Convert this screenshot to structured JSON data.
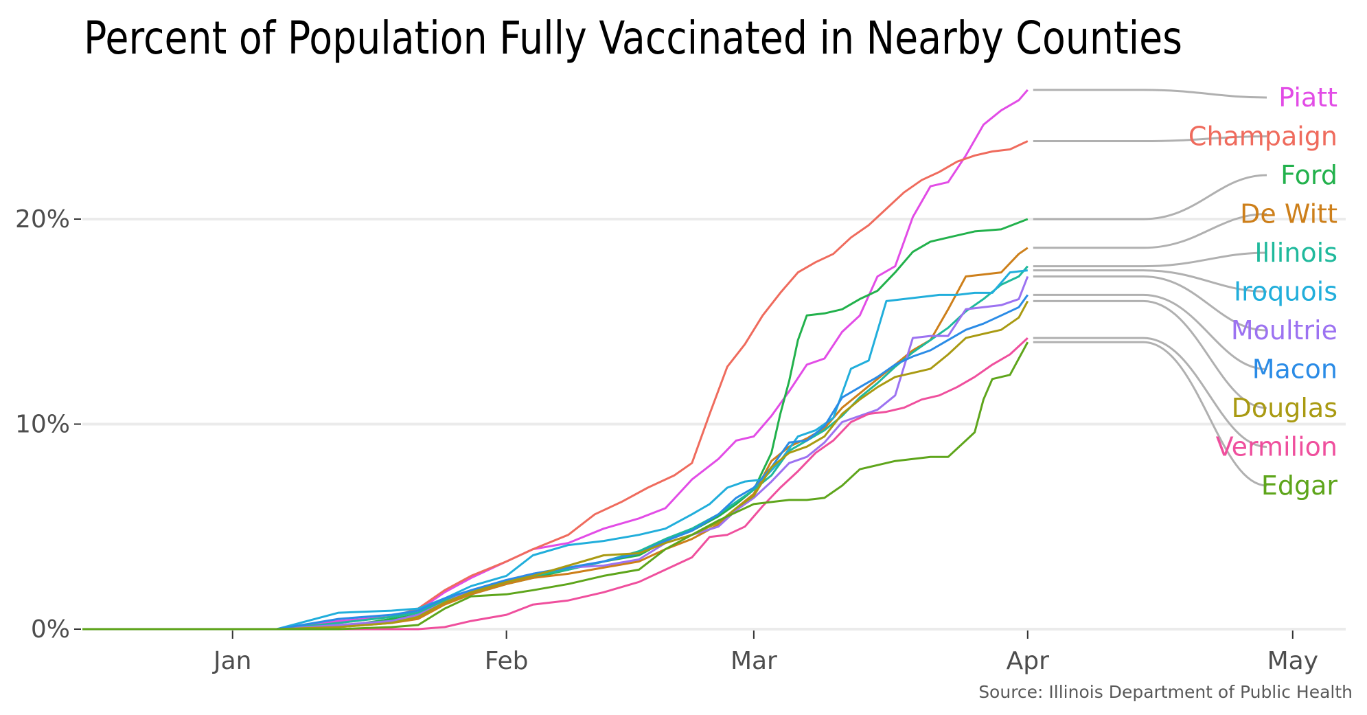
{
  "chart_data": {
    "type": "line",
    "title": "Percent of Population Fully Vaccinated in Nearby Counties",
    "source": "Source: Illinois Department of Public Health",
    "xlabel": "",
    "ylabel": "",
    "x_ticks": [
      {
        "label": "Jan",
        "day": 0
      },
      {
        "label": "Feb",
        "day": 31
      },
      {
        "label": "Mar",
        "day": 59
      },
      {
        "label": "Apr",
        "day": 90
      },
      {
        "label": "May",
        "day": 120
      }
    ],
    "y_ticks": [
      {
        "label": "0%",
        "value": 0
      },
      {
        "label": "10%",
        "value": 10
      },
      {
        "label": "20%",
        "value": 20
      }
    ],
    "xlim": [
      -17,
      126
    ],
    "ylim": [
      0,
      27
    ],
    "grid": true,
    "legend": "direct labels at right",
    "series": [
      {
        "name": "Piatt",
        "color": "#e24ce6",
        "x": [
          -17,
          5,
          12,
          18,
          21,
          24,
          27,
          31,
          34,
          38,
          42,
          46,
          49,
          52,
          55,
          57,
          59,
          61,
          63,
          65,
          67,
          69,
          71,
          73,
          75,
          77,
          79,
          81,
          83,
          85,
          87,
          89,
          90
        ],
        "y": [
          0,
          0,
          0.4,
          0.6,
          0.9,
          1.8,
          2.5,
          3.3,
          3.9,
          4.2,
          4.9,
          5.4,
          5.9,
          7.3,
          8.3,
          9.2,
          9.4,
          10.4,
          11.6,
          12.9,
          13.2,
          14.5,
          15.3,
          17.2,
          17.7,
          20.1,
          21.6,
          21.8,
          23.1,
          24.6,
          25.3,
          25.8,
          26.3
        ]
      },
      {
        "name": "Champaign",
        "color": "#ef6b5d",
        "x": [
          -17,
          5,
          12,
          18,
          21,
          24,
          27,
          31,
          34,
          38,
          41,
          44,
          47,
          50,
          52,
          54,
          56,
          58,
          60,
          62,
          64,
          66,
          68,
          70,
          72,
          74,
          76,
          78,
          80,
          82,
          84,
          86,
          88,
          90
        ],
        "y": [
          0,
          0,
          0.3,
          0.6,
          1,
          1.9,
          2.6,
          3.3,
          3.9,
          4.6,
          5.6,
          6.2,
          6.9,
          7.5,
          8.1,
          10.5,
          12.8,
          13.9,
          15.3,
          16.4,
          17.4,
          17.9,
          18.3,
          19.1,
          19.7,
          20.5,
          21.3,
          21.9,
          22.3,
          22.8,
          23.1,
          23.3,
          23.4,
          23.8
        ]
      },
      {
        "name": "Ford",
        "color": "#22b14c",
        "x": [
          -17,
          5,
          12,
          18,
          21,
          24,
          27,
          31,
          34,
          38,
          42,
          46,
          49,
          52,
          55,
          57,
          59,
          61,
          62,
          63,
          64,
          65,
          67,
          69,
          71,
          73,
          75,
          77,
          79,
          81,
          84,
          87,
          90
        ],
        "y": [
          0,
          0,
          0.1,
          0.5,
          0.7,
          1.3,
          1.7,
          2.2,
          2.5,
          2.9,
          3.3,
          3.6,
          4.3,
          4.8,
          5.5,
          6.1,
          6.8,
          8.6,
          10.5,
          12.1,
          14.1,
          15.3,
          15.4,
          15.6,
          16.1,
          16.5,
          17.4,
          18.4,
          18.9,
          19.1,
          19.4,
          19.5,
          20
        ]
      },
      {
        "name": "De Witt",
        "color": "#cd7f1a",
        "x": [
          -17,
          5,
          12,
          18,
          21,
          24,
          27,
          31,
          34,
          38,
          42,
          46,
          49,
          52,
          55,
          57,
          59,
          61,
          63,
          65,
          67,
          69,
          71,
          73,
          75,
          77,
          79,
          81,
          83,
          85,
          87,
          89,
          90
        ],
        "y": [
          0,
          0,
          0.1,
          0.3,
          0.5,
          1.2,
          1.7,
          2.2,
          2.5,
          2.7,
          3,
          3.3,
          3.9,
          4.4,
          5.1,
          5.9,
          6.6,
          8.2,
          8.9,
          9.3,
          9.8,
          10.8,
          11.5,
          12.2,
          12.9,
          13.6,
          14.1,
          15.6,
          17.2,
          17.3,
          17.4,
          18.3,
          18.6
        ]
      },
      {
        "name": "Illinois",
        "color": "#1fb99c",
        "x": [
          -17,
          5,
          12,
          18,
          21,
          24,
          27,
          31,
          34,
          38,
          42,
          46,
          49,
          52,
          55,
          57,
          59,
          61,
          63,
          65,
          67,
          69,
          71,
          73,
          75,
          77,
          79,
          81,
          83,
          85,
          87,
          89,
          90
        ],
        "y": [
          0,
          0,
          0.3,
          0.6,
          0.8,
          1.4,
          1.8,
          2.3,
          2.6,
          2.9,
          3.3,
          3.8,
          4.4,
          4.9,
          5.6,
          6.2,
          6.8,
          7.5,
          8.7,
          9.2,
          9.7,
          10.4,
          11.3,
          12,
          12.8,
          13.5,
          14.1,
          14.7,
          15.5,
          16.1,
          16.8,
          17.2,
          17.7
        ]
      },
      {
        "name": "Iroquois",
        "color": "#21aedb",
        "x": [
          -17,
          5,
          12,
          18,
          21,
          24,
          27,
          31,
          34,
          38,
          42,
          46,
          49,
          52,
          54,
          56,
          58,
          60,
          62,
          64,
          66,
          68,
          70,
          72,
          74,
          76,
          78,
          80,
          82,
          84,
          86,
          88,
          90
        ],
        "y": [
          0,
          0,
          0.8,
          0.9,
          1,
          1.5,
          2.1,
          2.6,
          3.6,
          4.1,
          4.3,
          4.6,
          4.9,
          5.6,
          6.1,
          6.9,
          7.2,
          7.3,
          8.2,
          9.4,
          9.7,
          10.3,
          12.7,
          13.1,
          16,
          16.1,
          16.2,
          16.3,
          16.3,
          16.4,
          16.4,
          17.4,
          17.5
        ]
      },
      {
        "name": "Moultrie",
        "color": "#9c72f1",
        "x": [
          -17,
          5,
          12,
          18,
          21,
          24,
          27,
          31,
          34,
          38,
          42,
          46,
          49,
          52,
          55,
          57,
          59,
          61,
          63,
          65,
          67,
          69,
          71,
          73,
          75,
          77,
          79,
          81,
          83,
          85,
          87,
          89,
          90
        ],
        "y": [
          0,
          0,
          0.2,
          0.4,
          0.7,
          1.3,
          1.9,
          2.4,
          2.7,
          3,
          3.1,
          3.4,
          4.2,
          4.6,
          5,
          5.8,
          6.4,
          7.2,
          8.1,
          8.4,
          9.1,
          10.1,
          10.4,
          10.7,
          11.4,
          14.2,
          14.3,
          14.3,
          15.6,
          15.7,
          15.8,
          16.1,
          17.2
        ]
      },
      {
        "name": "Macon",
        "color": "#2a8be6",
        "x": [
          -17,
          5,
          12,
          18,
          21,
          24,
          27,
          31,
          34,
          38,
          42,
          46,
          49,
          52,
          55,
          57,
          59,
          61,
          63,
          65,
          67,
          69,
          71,
          73,
          75,
          77,
          79,
          81,
          83,
          85,
          87,
          89,
          90
        ],
        "y": [
          0,
          0,
          0.5,
          0.7,
          0.9,
          1.5,
          1.9,
          2.4,
          2.7,
          3,
          3.3,
          3.7,
          4.3,
          4.8,
          5.6,
          6.4,
          6.9,
          7.9,
          9.1,
          9.2,
          9.9,
          11.3,
          11.8,
          12.3,
          12.9,
          13.3,
          13.6,
          14.1,
          14.6,
          14.9,
          15.3,
          15.7,
          16.3
        ]
      },
      {
        "name": "Douglas",
        "color": "#a99a12",
        "x": [
          -17,
          5,
          12,
          18,
          21,
          24,
          27,
          31,
          34,
          38,
          42,
          46,
          49,
          52,
          55,
          57,
          59,
          61,
          63,
          65,
          67,
          69,
          71,
          73,
          75,
          77,
          79,
          81,
          83,
          85,
          87,
          89,
          90
        ],
        "y": [
          0,
          0,
          0.1,
          0.3,
          0.6,
          1.3,
          1.8,
          2.3,
          2.6,
          3.1,
          3.6,
          3.7,
          4.2,
          4.6,
          5.2,
          5.9,
          6.5,
          7.9,
          8.6,
          8.9,
          9.4,
          10.5,
          11.2,
          11.8,
          12.3,
          12.5,
          12.7,
          13.4,
          14.2,
          14.4,
          14.6,
          15.2,
          16
        ]
      },
      {
        "name": "Vermilion",
        "color": "#ef4f9d",
        "x": [
          -17,
          5,
          12,
          18,
          21,
          24,
          27,
          31,
          34,
          38,
          42,
          46,
          49,
          52,
          54,
          56,
          58,
          60,
          62,
          64,
          66,
          68,
          70,
          72,
          74,
          76,
          78,
          80,
          82,
          84,
          86,
          88,
          90
        ],
        "y": [
          0,
          0,
          0,
          0,
          0,
          0.1,
          0.4,
          0.7,
          1.2,
          1.4,
          1.8,
          2.3,
          2.9,
          3.5,
          4.5,
          4.6,
          5,
          6,
          6.9,
          7.7,
          8.6,
          9.2,
          10.1,
          10.5,
          10.6,
          10.8,
          11.2,
          11.4,
          11.8,
          12.3,
          12.9,
          13.4,
          14.2
        ]
      },
      {
        "name": "Edgar",
        "color": "#5ea51b",
        "x": [
          -17,
          5,
          12,
          18,
          21,
          24,
          27,
          31,
          34,
          38,
          42,
          46,
          49,
          52,
          55,
          57,
          59,
          61,
          63,
          65,
          67,
          69,
          71,
          73,
          75,
          77,
          79,
          81,
          83,
          84,
          85,
          86,
          88,
          90
        ],
        "y": [
          0,
          0,
          0,
          0.1,
          0.2,
          1,
          1.6,
          1.7,
          1.9,
          2.2,
          2.6,
          2.9,
          3.9,
          4.6,
          5.3,
          5.7,
          6.1,
          6.2,
          6.3,
          6.3,
          6.4,
          7,
          7.8,
          8,
          8.2,
          8.3,
          8.4,
          8.4,
          9.2,
          9.6,
          11.2,
          12.2,
          12.4,
          14
        ]
      }
    ]
  }
}
